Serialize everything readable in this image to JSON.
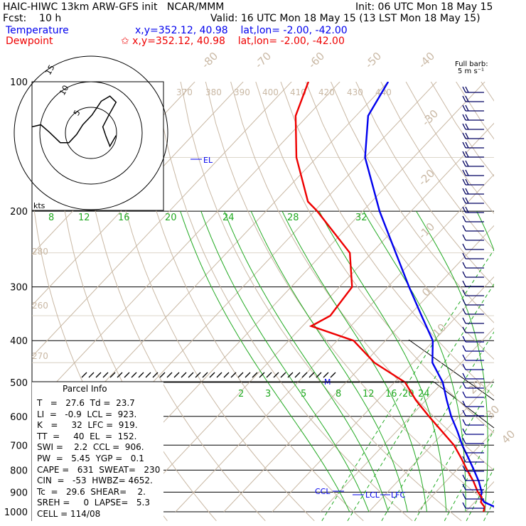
{
  "header": {
    "model_line": "HAIC-HIWC 13km ARW-GFS init   NCAR/MMM",
    "init": "Init: 06 UTC Mon 18 May 15",
    "fcst": "Fcst:    10 h",
    "valid": "Valid: 16 UTC Mon 18 May 15 (13 LST Mon 18 May 15)",
    "temp_label": "Temperature",
    "temp_loc": "x,y=352.12, 40.98    lat,lon= -2.00, -42.00",
    "dew_label": "Dewpoint",
    "dew_loc": "✩ x,y=352.12, 40.98    lat,lon= -2.00, -42.00",
    "colors": {
      "temperature": "#0000ee",
      "dewpoint": "#ee0000"
    }
  },
  "barb_legend": {
    "line1": "Full barb:",
    "line2": "5 m s⁻¹"
  },
  "pressure_labels": [
    "100",
    "200",
    "300",
    "400",
    "500",
    "600",
    "700",
    "800",
    "900",
    "1000"
  ],
  "temp_axis_labels": [
    "-80",
    "-70",
    "-60",
    "-50",
    "-40",
    "-30",
    "-20",
    "-10",
    "0",
    "10",
    "20",
    "30",
    "40"
  ],
  "theta_labels": [
    "370",
    "380",
    "390",
    "400",
    "410",
    "420",
    "430",
    "440",
    "280",
    "260",
    "270"
  ],
  "mixing_ratio_labels_upper": [
    "8",
    "12",
    "16",
    "20",
    "24",
    "28",
    "32"
  ],
  "mixing_ratio_labels_lower": [
    "2",
    "3",
    "5",
    "8",
    "12",
    "16",
    "20",
    "24"
  ],
  "annotations": {
    "el": "EL",
    "m": "M",
    "ccl": "CCL",
    "lcl": "LCL",
    "lfc": "LFC"
  },
  "hodograph": {
    "units": "kts",
    "ring_labels": [
      "5",
      "10",
      "15"
    ]
  },
  "parcel_info": {
    "title": "Parcel Info",
    "rows": [
      "T   =   27.6  Td =  23.7",
      "LI  =   -0.9  LCL =  923.",
      "K   =     32  LFC =  919.",
      "TT  =     40  EL  =  152.",
      "SWI =    2.2  CCL =  906.",
      "PW  =   5.45  YGP =   0.1",
      "CAPE =   631  SWEAT=   230",
      "CIN  =   -53  HWBZ= 4652.",
      "Tc  =   29.6  SHEAR=    2.",
      "SREH =     0  LAPSE=   5.3",
      "CELL = 114/08"
    ]
  },
  "chart_data": {
    "type": "line",
    "title": "",
    "xlabel": "",
    "ylabel": "",
    "y_axis": "pressure (hPa)",
    "ylim": [
      1000,
      100
    ],
    "y_scale": "log",
    "x_axis_skew": "temperature (°C), skewed isotherms",
    "xlim_at_1000hPa": [
      -42,
      24
    ],
    "series": [
      {
        "name": "Temperature",
        "color": "#0000ee",
        "pressure": [
          1000,
          975,
          950,
          925,
          900,
          850,
          800,
          750,
          700,
          650,
          600,
          550,
          500,
          450,
          400,
          350,
          300,
          250,
          200,
          150,
          120,
          100
        ],
        "temperature": [
          28.5,
          25.2,
          22.0,
          20.3,
          19.5,
          16.8,
          13.6,
          10.1,
          6.3,
          2.6,
          -1.6,
          -5.7,
          -10.0,
          -16.0,
          -20.2,
          -27.4,
          -35.6,
          -45.0,
          -56.5,
          -70.0,
          -77.5,
          -80.0
        ]
      },
      {
        "name": "Dewpoint",
        "color": "#ee0000",
        "pressure": [
          1000,
          975,
          950,
          925,
          900,
          850,
          800,
          750,
          700,
          650,
          600,
          550,
          500,
          450,
          400,
          370,
          350,
          300,
          250,
          200,
          190,
          150,
          120,
          100
        ],
        "temperature": [
          23.7,
          23.0,
          21.3,
          20.5,
          18.7,
          15.7,
          12.2,
          8.6,
          4.6,
          -0.6,
          -6.2,
          -12.1,
          -17.8,
          -28.0,
          -36.6,
          -48.2,
          -46.3,
          -47.4,
          -54.5,
          -69.4,
          -73.2,
          -84.2,
          -92.5,
          -96.5
        ]
      }
    ],
    "hodograph_u_v_kts": [
      [
        -17.5,
        2.6
      ],
      [
        -17.5,
        3.5
      ],
      [
        -16.3,
        3.9
      ],
      [
        -15.5,
        2.9
      ],
      [
        -13.8,
        1.5
      ],
      [
        -11.5,
        1.2
      ],
      [
        -9.8,
        1.6
      ],
      [
        -8.2,
        0.2
      ],
      [
        -6.0,
        -1.9
      ],
      [
        -4.3,
        -1.9
      ],
      [
        -2.8,
        -0.3
      ],
      [
        -1.6,
        1.6
      ],
      [
        0.2,
        3.5
      ],
      [
        2.0,
        6.2
      ],
      [
        3.7,
        7.2
      ],
      [
        4.9,
        6.0
      ],
      [
        3.5,
        3.5
      ],
      [
        2.3,
        1.2
      ],
      [
        2.9,
        -0.6
      ],
      [
        3.7,
        -2.6
      ],
      [
        4.9,
        -0.5
      ]
    ]
  }
}
